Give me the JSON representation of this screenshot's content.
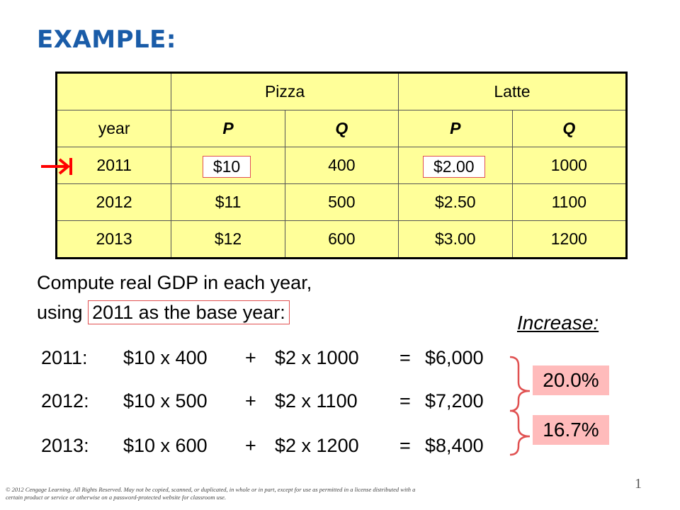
{
  "title": "EXAMPLE:",
  "table": {
    "groups": [
      "Pizza",
      "Latte"
    ],
    "subheaders": [
      "year",
      "P",
      "Q",
      "P",
      "Q"
    ],
    "rows": [
      [
        "2011",
        "$10",
        "400",
        "$2.00",
        "1000"
      ],
      [
        "2012",
        "$11",
        "500",
        "$2.50",
        "1100"
      ],
      [
        "2013",
        "$12",
        "600",
        "$3.00",
        "1200"
      ]
    ]
  },
  "prompt": {
    "line1": "Compute real GDP in each year,",
    "line2_prefix": "using",
    "line2_boxed": "2011 as the base year:"
  },
  "increase_label": "Increase:",
  "calculations": [
    {
      "year": "2011:",
      "term1": "$10 x 400",
      "plus": "+",
      "term2": "$2 x 1000",
      "eq": "=",
      "result": "$6,000"
    },
    {
      "year": "2012:",
      "term1": "$10 x 500",
      "plus": "+",
      "term2": "$2 x 1100",
      "eq": "=",
      "result": "$7,200"
    },
    {
      "year": "2013:",
      "term1": "$10 x 600",
      "plus": "+",
      "term2": "$2 x 1200",
      "eq": "=",
      "result": "$8,400"
    }
  ],
  "increases": [
    "20.0%",
    "16.7%"
  ],
  "page_number": "1",
  "copyright": "© 2012 Cengage Learning. All Rights Reserved. May not be copied, scanned, or duplicated, in whole or in part, except for use as permitted in a license distributed with a certain product or service or otherwise on a password-protected website for classroom use.",
  "colors": {
    "title": "#1a5ca8",
    "table_fill": "#ffff99",
    "highlight_border": "#e05050",
    "increase_fill": "#ffbbbb",
    "arrow": "#ff0000"
  },
  "icons": [
    "right-arrow-icon",
    "bracket-icon"
  ]
}
